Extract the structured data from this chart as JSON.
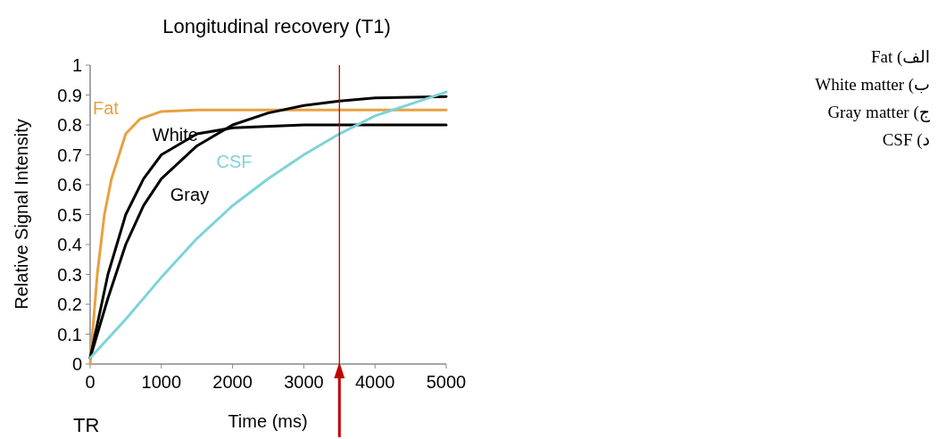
{
  "chart_data": {
    "type": "line",
    "title": "Longitudinal recovery (T1)",
    "xlabel": "Time (ms)",
    "ylabel": "Relative Signal Intensity",
    "xlim": [
      0,
      5000
    ],
    "xticks": [
      0,
      1000,
      2000,
      3000,
      4000,
      5000
    ],
    "ylim": [
      0,
      1
    ],
    "yticks": [
      0,
      0.1,
      0.2,
      0.3,
      0.4,
      0.5,
      0.6,
      0.7,
      0.8,
      0.9,
      1
    ],
    "series": [
      {
        "name": "Fat",
        "color": "#e8a040",
        "x": [
          0,
          100,
          200,
          300,
          500,
          700,
          1000,
          1500,
          5000
        ],
        "values": [
          0,
          0.3,
          0.5,
          0.62,
          0.77,
          0.82,
          0.845,
          0.85,
          0.85
        ]
      },
      {
        "name": "White",
        "color": "#000000",
        "x": [
          0,
          250,
          500,
          750,
          1000,
          1500,
          2000,
          3000,
          5000
        ],
        "values": [
          0.02,
          0.3,
          0.5,
          0.62,
          0.7,
          0.77,
          0.79,
          0.8,
          0.8
        ]
      },
      {
        "name": "Gray",
        "color": "#000000",
        "x": [
          0,
          250,
          500,
          750,
          1000,
          1500,
          2000,
          2500,
          3000,
          3500,
          4000,
          5000
        ],
        "values": [
          0.02,
          0.22,
          0.4,
          0.53,
          0.62,
          0.73,
          0.8,
          0.84,
          0.865,
          0.88,
          0.89,
          0.895
        ]
      },
      {
        "name": "CSF",
        "color": "#7dd3d8",
        "x": [
          0,
          500,
          1000,
          1500,
          2000,
          2500,
          3000,
          3500,
          4000,
          4500,
          5000
        ],
        "values": [
          0.02,
          0.15,
          0.29,
          0.42,
          0.53,
          0.62,
          0.7,
          0.77,
          0.83,
          0.87,
          0.91
        ]
      }
    ],
    "ref_lines": [
      {
        "axis": "x",
        "value": 3500,
        "color": "#c00000"
      }
    ],
    "annotations": [
      "TR",
      "الف) Fat",
      "ب) White matter",
      "ج) Gray matter",
      "د) CSF"
    ],
    "grid": false,
    "marker": "none",
    "line_style": "solid"
  }
}
